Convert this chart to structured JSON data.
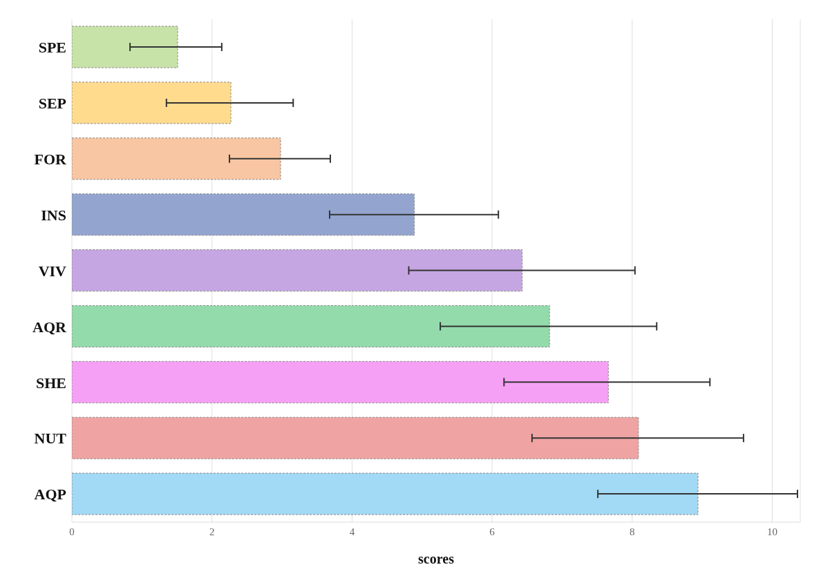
{
  "chart_data": {
    "type": "bar",
    "orientation": "horizontal",
    "xlabel": "scores",
    "categories": [
      "SPE",
      "SEP",
      "FOR",
      "INS",
      "VIV",
      "AQR",
      "SHE",
      "NUT",
      "AQP"
    ],
    "values": [
      1.51,
      2.27,
      2.98,
      4.89,
      6.43,
      6.82,
      7.66,
      8.09,
      8.94
    ],
    "errors": [
      [
        0.83,
        2.14
      ],
      [
        1.35,
        3.16
      ],
      [
        2.25,
        3.69
      ],
      [
        3.68,
        6.09
      ],
      [
        4.81,
        8.04
      ],
      [
        5.26,
        8.35
      ],
      [
        6.17,
        9.11
      ],
      [
        6.57,
        9.59
      ],
      [
        7.51,
        10.36
      ]
    ],
    "colors": [
      "#c8e3a8",
      "#ffdb8e",
      "#f8c6a2",
      "#93a5cf",
      "#c6a6e2",
      "#93dbab",
      "#f5a0f5",
      "#f0a3a3",
      "#a2d9f5"
    ],
    "xlim": [
      0,
      10.4
    ],
    "xticks": [
      0,
      2,
      4,
      6,
      8,
      10
    ],
    "grid": "x",
    "legend": false
  }
}
